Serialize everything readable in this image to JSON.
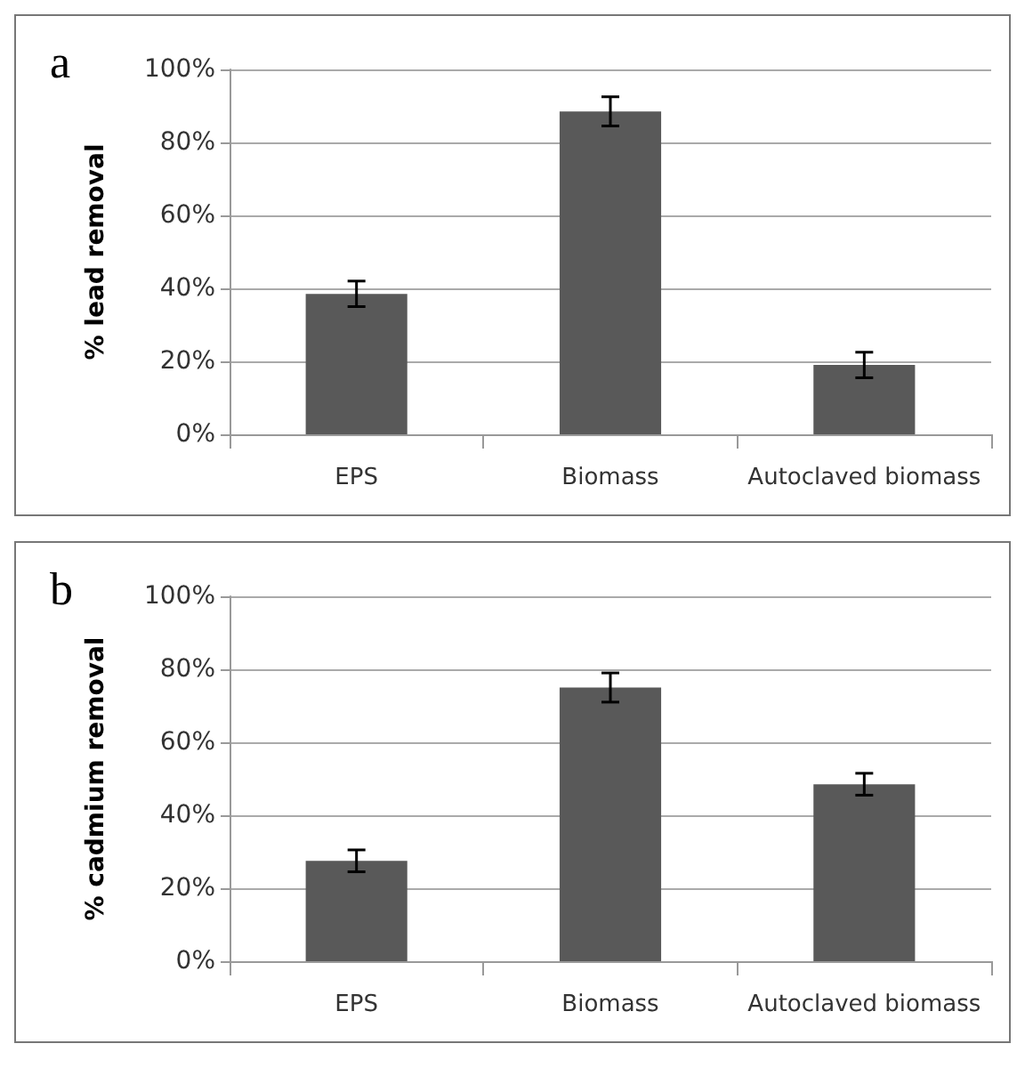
{
  "chart_data": [
    {
      "type": "bar",
      "title": "a",
      "ylabel": "% lead removal",
      "categories": [
        "EPS",
        "Biomass",
        "Autoclaved biomass"
      ],
      "values": [
        38.5,
        88.5,
        19
      ],
      "errors": [
        3.5,
        4,
        3.5
      ],
      "color": "#595959",
      "ylim": [
        0,
        100
      ],
      "yticks": [
        {
          "value": 0,
          "label": "0%"
        },
        {
          "value": 20,
          "label": "20%"
        },
        {
          "value": 40,
          "label": "40%"
        },
        {
          "value": 60,
          "label": "60%"
        },
        {
          "value": 80,
          "label": "80%"
        },
        {
          "value": 100,
          "label": "100%"
        }
      ],
      "grid": "y"
    },
    {
      "type": "bar",
      "title": "b",
      "ylabel": "% cadmium removal",
      "categories": [
        "EPS",
        "Biomass",
        "Autoclaved biomass"
      ],
      "values": [
        27.5,
        75,
        48.5
      ],
      "errors": [
        3,
        4,
        3
      ],
      "color": "#595959",
      "ylim": [
        0,
        100
      ],
      "yticks": [
        {
          "value": 0,
          "label": "0%"
        },
        {
          "value": 20,
          "label": "20%"
        },
        {
          "value": 40,
          "label": "40%"
        },
        {
          "value": 60,
          "label": "60%"
        },
        {
          "value": 80,
          "label": "80%"
        },
        {
          "value": 100,
          "label": "100%"
        }
      ],
      "grid": "y"
    }
  ]
}
